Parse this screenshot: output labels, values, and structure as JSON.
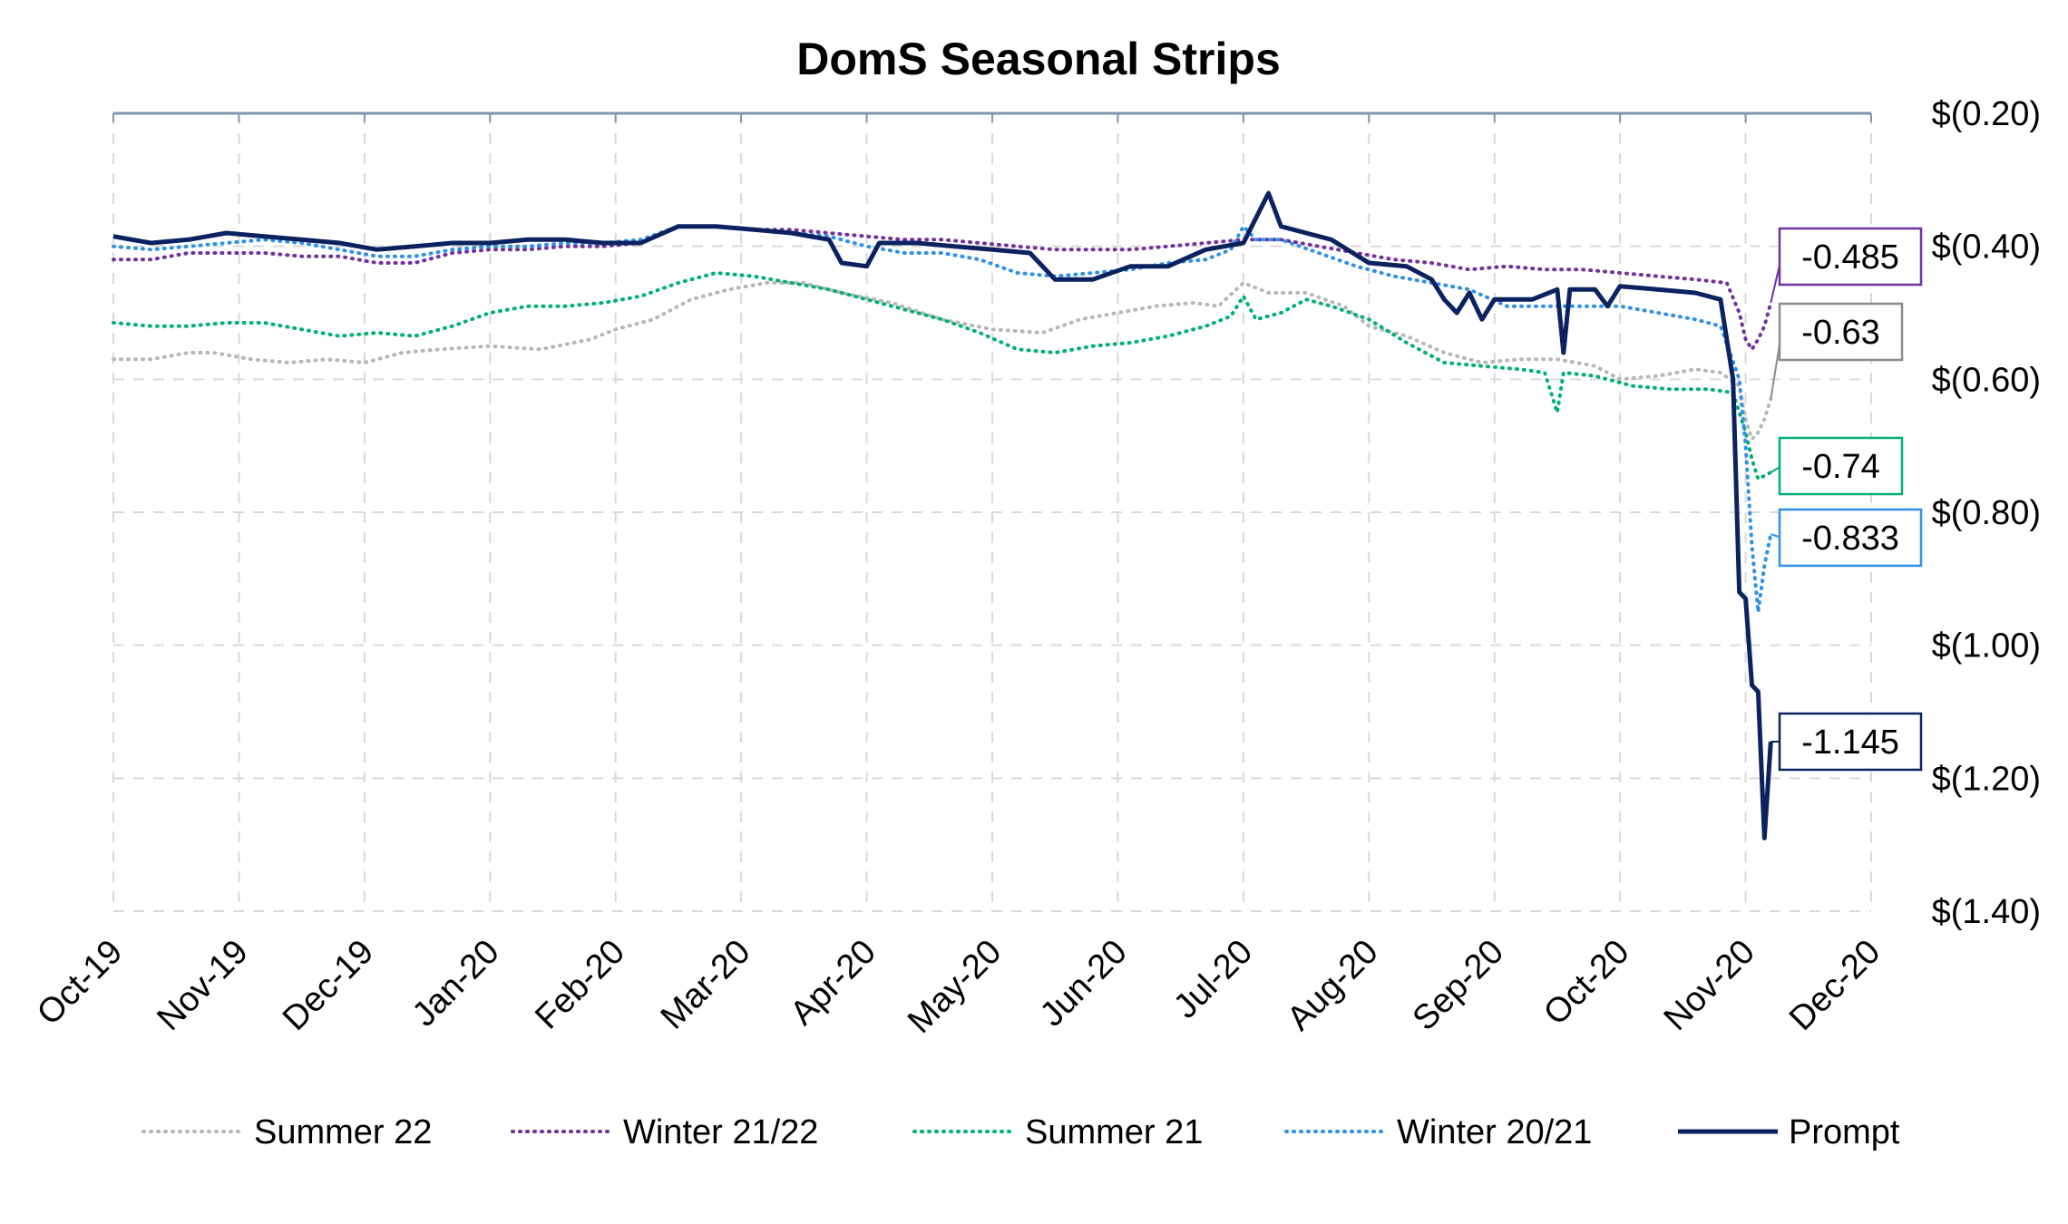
{
  "chart_data": {
    "type": "line",
    "title": "DomS Seasonal Strips",
    "x_ticks": [
      "Oct-19",
      "Nov-19",
      "Dec-19",
      "Jan-20",
      "Feb-20",
      "Mar-20",
      "Apr-20",
      "May-20",
      "Jun-20",
      "Jul-20",
      "Aug-20",
      "Sep-20",
      "Oct-20",
      "Nov-20",
      "Dec-20"
    ],
    "y_ticks": [
      "$(0.20)",
      "$(0.40)",
      "$(0.60)",
      "$(0.80)",
      "$(1.00)",
      "$(1.20)",
      "$(1.40)"
    ],
    "ylim": [
      -1.4,
      -0.2
    ],
    "y_axis_side": "right",
    "grid": true,
    "legend_position": "bottom",
    "series": [
      {
        "name": "Summer 22",
        "color": "#b7b7b7",
        "style": "dotted",
        "points": [
          [
            0,
            -0.57
          ],
          [
            0.3,
            -0.57
          ],
          [
            0.6,
            -0.56
          ],
          [
            0.8,
            -0.56
          ],
          [
            1.1,
            -0.57
          ],
          [
            1.4,
            -0.575
          ],
          [
            1.7,
            -0.57
          ],
          [
            2.0,
            -0.575
          ],
          [
            2.3,
            -0.56
          ],
          [
            2.6,
            -0.555
          ],
          [
            3.0,
            -0.55
          ],
          [
            3.4,
            -0.555
          ],
          [
            3.8,
            -0.54
          ],
          [
            4.0,
            -0.525
          ],
          [
            4.3,
            -0.51
          ],
          [
            4.6,
            -0.48
          ],
          [
            4.9,
            -0.465
          ],
          [
            5.2,
            -0.455
          ],
          [
            5.5,
            -0.455
          ],
          [
            5.8,
            -0.47
          ],
          [
            6.2,
            -0.485
          ],
          [
            6.6,
            -0.51
          ],
          [
            7.0,
            -0.525
          ],
          [
            7.4,
            -0.53
          ],
          [
            7.7,
            -0.51
          ],
          [
            8.0,
            -0.5
          ],
          [
            8.3,
            -0.49
          ],
          [
            8.6,
            -0.485
          ],
          [
            8.8,
            -0.49
          ],
          [
            9.0,
            -0.455
          ],
          [
            9.2,
            -0.47
          ],
          [
            9.5,
            -0.47
          ],
          [
            9.8,
            -0.49
          ],
          [
            10.0,
            -0.52
          ],
          [
            10.3,
            -0.535
          ],
          [
            10.6,
            -0.56
          ],
          [
            10.9,
            -0.575
          ],
          [
            11.2,
            -0.57
          ],
          [
            11.5,
            -0.57
          ],
          [
            11.8,
            -0.58
          ],
          [
            12.0,
            -0.6
          ],
          [
            12.3,
            -0.595
          ],
          [
            12.6,
            -0.585
          ],
          [
            12.8,
            -0.59
          ],
          [
            12.95,
            -0.61
          ],
          [
            13.0,
            -0.66
          ],
          [
            13.05,
            -0.69
          ],
          [
            13.1,
            -0.68
          ],
          [
            13.15,
            -0.66
          ],
          [
            13.2,
            -0.63
          ]
        ]
      },
      {
        "name": "Winter 21/22",
        "color": "#7030a0",
        "style": "dotted",
        "points": [
          [
            0,
            -0.42
          ],
          [
            0.3,
            -0.42
          ],
          [
            0.6,
            -0.41
          ],
          [
            0.9,
            -0.41
          ],
          [
            1.2,
            -0.41
          ],
          [
            1.5,
            -0.415
          ],
          [
            1.8,
            -0.415
          ],
          [
            2.1,
            -0.425
          ],
          [
            2.4,
            -0.425
          ],
          [
            2.7,
            -0.41
          ],
          [
            3.0,
            -0.405
          ],
          [
            3.3,
            -0.405
          ],
          [
            3.6,
            -0.4
          ],
          [
            3.9,
            -0.4
          ],
          [
            4.2,
            -0.395
          ],
          [
            4.5,
            -0.37
          ],
          [
            4.8,
            -0.37
          ],
          [
            5.1,
            -0.375
          ],
          [
            5.4,
            -0.375
          ],
          [
            5.7,
            -0.38
          ],
          [
            6.0,
            -0.385
          ],
          [
            6.3,
            -0.39
          ],
          [
            6.6,
            -0.39
          ],
          [
            6.9,
            -0.395
          ],
          [
            7.2,
            -0.4
          ],
          [
            7.5,
            -0.405
          ],
          [
            7.8,
            -0.405
          ],
          [
            8.1,
            -0.405
          ],
          [
            8.4,
            -0.4
          ],
          [
            8.7,
            -0.395
          ],
          [
            9.0,
            -0.39
          ],
          [
            9.3,
            -0.39
          ],
          [
            9.6,
            -0.4
          ],
          [
            9.9,
            -0.41
          ],
          [
            10.2,
            -0.42
          ],
          [
            10.5,
            -0.425
          ],
          [
            10.8,
            -0.435
          ],
          [
            11.1,
            -0.43
          ],
          [
            11.4,
            -0.435
          ],
          [
            11.7,
            -0.435
          ],
          [
            12.0,
            -0.44
          ],
          [
            12.3,
            -0.445
          ],
          [
            12.6,
            -0.45
          ],
          [
            12.85,
            -0.455
          ],
          [
            12.95,
            -0.5
          ],
          [
            13.0,
            -0.54
          ],
          [
            13.05,
            -0.555
          ],
          [
            13.1,
            -0.54
          ],
          [
            13.15,
            -0.52
          ],
          [
            13.2,
            -0.485
          ]
        ]
      },
      {
        "name": "Summer 21",
        "color": "#00b073",
        "style": "dotted",
        "points": [
          [
            0,
            -0.515
          ],
          [
            0.3,
            -0.52
          ],
          [
            0.6,
            -0.52
          ],
          [
            0.9,
            -0.515
          ],
          [
            1.2,
            -0.515
          ],
          [
            1.5,
            -0.525
          ],
          [
            1.8,
            -0.535
          ],
          [
            2.1,
            -0.53
          ],
          [
            2.4,
            -0.535
          ],
          [
            2.7,
            -0.52
          ],
          [
            3.0,
            -0.5
          ],
          [
            3.3,
            -0.49
          ],
          [
            3.6,
            -0.49
          ],
          [
            3.9,
            -0.485
          ],
          [
            4.2,
            -0.475
          ],
          [
            4.5,
            -0.455
          ],
          [
            4.8,
            -0.44
          ],
          [
            5.1,
            -0.445
          ],
          [
            5.4,
            -0.455
          ],
          [
            5.7,
            -0.465
          ],
          [
            6.0,
            -0.48
          ],
          [
            6.3,
            -0.495
          ],
          [
            6.6,
            -0.51
          ],
          [
            6.9,
            -0.53
          ],
          [
            7.2,
            -0.555
          ],
          [
            7.5,
            -0.56
          ],
          [
            7.8,
            -0.55
          ],
          [
            8.1,
            -0.545
          ],
          [
            8.4,
            -0.535
          ],
          [
            8.7,
            -0.52
          ],
          [
            8.9,
            -0.505
          ],
          [
            9.0,
            -0.475
          ],
          [
            9.1,
            -0.51
          ],
          [
            9.3,
            -0.5
          ],
          [
            9.5,
            -0.48
          ],
          [
            9.7,
            -0.49
          ],
          [
            10.0,
            -0.51
          ],
          [
            10.3,
            -0.545
          ],
          [
            10.6,
            -0.575
          ],
          [
            10.9,
            -0.58
          ],
          [
            11.2,
            -0.585
          ],
          [
            11.4,
            -0.59
          ],
          [
            11.5,
            -0.65
          ],
          [
            11.55,
            -0.59
          ],
          [
            11.8,
            -0.595
          ],
          [
            12.1,
            -0.61
          ],
          [
            12.4,
            -0.615
          ],
          [
            12.7,
            -0.615
          ],
          [
            12.9,
            -0.62
          ],
          [
            13.0,
            -0.68
          ],
          [
            13.05,
            -0.72
          ],
          [
            13.1,
            -0.75
          ],
          [
            13.2,
            -0.74
          ]
        ]
      },
      {
        "name": "Winter 20/21",
        "color": "#2e90e8",
        "style": "dotted",
        "points": [
          [
            0,
            -0.4
          ],
          [
            0.3,
            -0.405
          ],
          [
            0.6,
            -0.4
          ],
          [
            0.9,
            -0.395
          ],
          [
            1.2,
            -0.39
          ],
          [
            1.5,
            -0.395
          ],
          [
            1.8,
            -0.405
          ],
          [
            2.1,
            -0.415
          ],
          [
            2.4,
            -0.415
          ],
          [
            2.7,
            -0.405
          ],
          [
            3.0,
            -0.4
          ],
          [
            3.3,
            -0.4
          ],
          [
            3.6,
            -0.395
          ],
          [
            3.9,
            -0.395
          ],
          [
            4.2,
            -0.39
          ],
          [
            4.5,
            -0.37
          ],
          [
            4.8,
            -0.37
          ],
          [
            5.1,
            -0.375
          ],
          [
            5.4,
            -0.38
          ],
          [
            5.7,
            -0.385
          ],
          [
            6.0,
            -0.4
          ],
          [
            6.3,
            -0.41
          ],
          [
            6.6,
            -0.41
          ],
          [
            6.9,
            -0.42
          ],
          [
            7.2,
            -0.44
          ],
          [
            7.5,
            -0.445
          ],
          [
            7.8,
            -0.44
          ],
          [
            8.1,
            -0.435
          ],
          [
            8.4,
            -0.425
          ],
          [
            8.7,
            -0.42
          ],
          [
            8.9,
            -0.405
          ],
          [
            9.0,
            -0.37
          ],
          [
            9.1,
            -0.39
          ],
          [
            9.3,
            -0.39
          ],
          [
            9.6,
            -0.41
          ],
          [
            9.9,
            -0.43
          ],
          [
            10.2,
            -0.445
          ],
          [
            10.5,
            -0.455
          ],
          [
            10.8,
            -0.465
          ],
          [
            11.1,
            -0.49
          ],
          [
            11.4,
            -0.49
          ],
          [
            11.7,
            -0.49
          ],
          [
            12.0,
            -0.49
          ],
          [
            12.3,
            -0.5
          ],
          [
            12.6,
            -0.51
          ],
          [
            12.8,
            -0.52
          ],
          [
            12.95,
            -0.6
          ],
          [
            13.0,
            -0.7
          ],
          [
            13.05,
            -0.85
          ],
          [
            13.1,
            -0.95
          ],
          [
            13.15,
            -0.88
          ],
          [
            13.2,
            -0.833
          ]
        ]
      },
      {
        "name": "Prompt",
        "color": "#0c2260",
        "style": "solid",
        "points": [
          [
            0,
            -0.385
          ],
          [
            0.3,
            -0.395
          ],
          [
            0.6,
            -0.39
          ],
          [
            0.9,
            -0.38
          ],
          [
            1.2,
            -0.385
          ],
          [
            1.5,
            -0.39
          ],
          [
            1.8,
            -0.395
          ],
          [
            2.1,
            -0.405
          ],
          [
            2.4,
            -0.4
          ],
          [
            2.7,
            -0.395
          ],
          [
            3.0,
            -0.395
          ],
          [
            3.3,
            -0.39
          ],
          [
            3.6,
            -0.39
          ],
          [
            3.9,
            -0.395
          ],
          [
            4.2,
            -0.395
          ],
          [
            4.5,
            -0.37
          ],
          [
            4.8,
            -0.37
          ],
          [
            5.1,
            -0.375
          ],
          [
            5.4,
            -0.38
          ],
          [
            5.7,
            -0.39
          ],
          [
            5.8,
            -0.425
          ],
          [
            6.0,
            -0.43
          ],
          [
            6.1,
            -0.395
          ],
          [
            6.4,
            -0.395
          ],
          [
            6.7,
            -0.4
          ],
          [
            7.0,
            -0.405
          ],
          [
            7.3,
            -0.41
          ],
          [
            7.5,
            -0.45
          ],
          [
            7.8,
            -0.45
          ],
          [
            8.1,
            -0.43
          ],
          [
            8.4,
            -0.43
          ],
          [
            8.7,
            -0.405
          ],
          [
            9.0,
            -0.395
          ],
          [
            9.2,
            -0.32
          ],
          [
            9.3,
            -0.37
          ],
          [
            9.5,
            -0.38
          ],
          [
            9.7,
            -0.39
          ],
          [
            10.0,
            -0.425
          ],
          [
            10.3,
            -0.43
          ],
          [
            10.5,
            -0.45
          ],
          [
            10.6,
            -0.48
          ],
          [
            10.7,
            -0.5
          ],
          [
            10.8,
            -0.47
          ],
          [
            10.9,
            -0.51
          ],
          [
            11.0,
            -0.48
          ],
          [
            11.3,
            -0.48
          ],
          [
            11.5,
            -0.465
          ],
          [
            11.55,
            -0.56
          ],
          [
            11.6,
            -0.465
          ],
          [
            11.8,
            -0.465
          ],
          [
            11.9,
            -0.49
          ],
          [
            12.0,
            -0.46
          ],
          [
            12.3,
            -0.465
          ],
          [
            12.6,
            -0.47
          ],
          [
            12.8,
            -0.48
          ],
          [
            12.9,
            -0.6
          ],
          [
            12.95,
            -0.92
          ],
          [
            13.0,
            -0.93
          ],
          [
            13.05,
            -1.06
          ],
          [
            13.1,
            -1.07
          ],
          [
            13.15,
            -1.29
          ],
          [
            13.2,
            -1.145
          ]
        ]
      }
    ],
    "end_labels": [
      {
        "series": "Winter 21/22",
        "text": "-0.485",
        "color": "#7030a0"
      },
      {
        "series": "Summer 22",
        "text": "-0.63",
        "color": "#8c8c8c"
      },
      {
        "series": "Summer 21",
        "text": "-0.74",
        "color": "#00b073"
      },
      {
        "series": "Winter 20/21",
        "text": "-0.833",
        "color": "#2e90e8"
      },
      {
        "series": "Prompt",
        "text": "-1.145",
        "color": "#0c2260"
      }
    ]
  }
}
